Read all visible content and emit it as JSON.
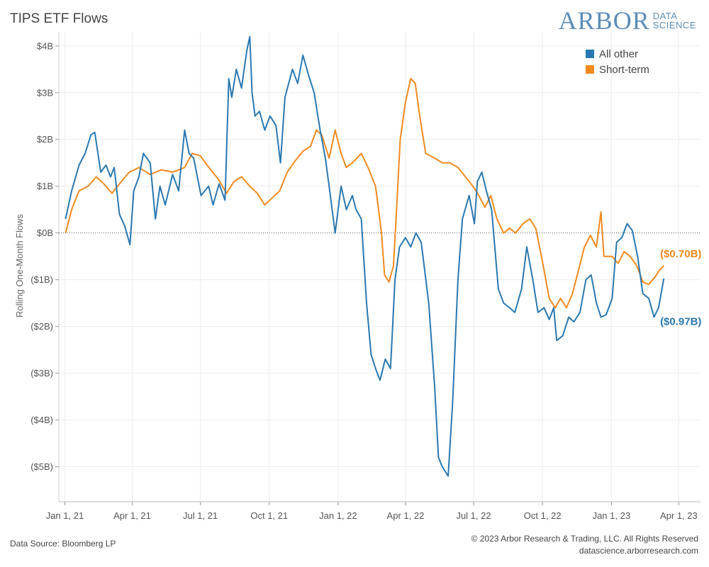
{
  "header": {
    "title": "TIPS ETF Flows",
    "logo_main": "ARBOR",
    "logo_sub_1": "DATA",
    "logo_sub_2": "SCIENCE"
  },
  "footer": {
    "source": "Data Source: Bloomberg LP",
    "copyright": "© 2023 Arbor Research & Trading, LLC. All Rights Reserved",
    "url": "datascience.arborresearch.com"
  },
  "chart_data": {
    "type": "line",
    "title": "TIPS ETF Flows",
    "ylabel": "Rolling One-Month Flows",
    "xlabel": "",
    "ylim": [
      -5.75,
      4.3
    ],
    "yunit": "billions USD",
    "y_ticks": [
      4,
      3,
      2,
      1,
      0,
      -1,
      -2,
      -3,
      -4,
      -5
    ],
    "y_tick_labels": [
      "$4B",
      "$3B",
      "$2B",
      "$1B",
      "$0B",
      "($1B)",
      "($2B)",
      "($3B)",
      "($4B)",
      "($5B)"
    ],
    "x_range": [
      "2020-12-24",
      "2023-04-30"
    ],
    "x_ticks": [
      "2021-01-01",
      "2021-04-01",
      "2021-07-01",
      "2021-10-01",
      "2022-01-01",
      "2022-04-01",
      "2022-07-01",
      "2022-10-01",
      "2023-01-01",
      "2023-04-01"
    ],
    "x_tick_labels": [
      "Jan 1, 21",
      "Apr 1, 21",
      "Jul 1, 21",
      "Oct 1, 21",
      "Jan 1, 22",
      "Apr 1, 22",
      "Jul 1, 22",
      "Oct 1, 22",
      "Jan 1, 23",
      "Apr 1, 23"
    ],
    "zero_line": "dotted",
    "legend_position": "top-right",
    "colors": {
      "all_other": "#2a78b0",
      "short_term": "#f18a20"
    },
    "series": [
      {
        "name": "All other",
        "color": "#2a78b0",
        "end_label": "($0.97B)",
        "points": [
          [
            "2021-01-02",
            0.3
          ],
          [
            "2021-01-10",
            0.9
          ],
          [
            "2021-01-20",
            1.45
          ],
          [
            "2021-01-28",
            1.7
          ],
          [
            "2021-02-05",
            2.1
          ],
          [
            "2021-02-10",
            2.15
          ],
          [
            "2021-02-18",
            1.3
          ],
          [
            "2021-02-25",
            1.45
          ],
          [
            "2021-03-03",
            1.2
          ],
          [
            "2021-03-08",
            1.4
          ],
          [
            "2021-03-15",
            0.4
          ],
          [
            "2021-03-22",
            0.15
          ],
          [
            "2021-03-29",
            -0.25
          ],
          [
            "2021-04-03",
            0.9
          ],
          [
            "2021-04-10",
            1.2
          ],
          [
            "2021-04-16",
            1.7
          ],
          [
            "2021-04-25",
            1.5
          ],
          [
            "2021-05-02",
            0.3
          ],
          [
            "2021-05-08",
            1.0
          ],
          [
            "2021-05-15",
            0.6
          ],
          [
            "2021-05-25",
            1.25
          ],
          [
            "2021-06-02",
            0.9
          ],
          [
            "2021-06-10",
            2.2
          ],
          [
            "2021-06-16",
            1.7
          ],
          [
            "2021-06-22",
            1.6
          ],
          [
            "2021-07-02",
            0.8
          ],
          [
            "2021-07-12",
            1.0
          ],
          [
            "2021-07-18",
            0.6
          ],
          [
            "2021-07-26",
            1.05
          ],
          [
            "2021-08-03",
            0.7
          ],
          [
            "2021-08-08",
            3.3
          ],
          [
            "2021-08-12",
            2.9
          ],
          [
            "2021-08-18",
            3.5
          ],
          [
            "2021-08-25",
            3.1
          ],
          [
            "2021-09-01",
            3.9
          ],
          [
            "2021-09-05",
            4.2
          ],
          [
            "2021-09-08",
            3.0
          ],
          [
            "2021-09-12",
            2.5
          ],
          [
            "2021-09-18",
            2.6
          ],
          [
            "2021-09-25",
            2.2
          ],
          [
            "2021-10-02",
            2.5
          ],
          [
            "2021-10-10",
            2.3
          ],
          [
            "2021-10-16",
            1.5
          ],
          [
            "2021-10-22",
            2.9
          ],
          [
            "2021-11-01",
            3.5
          ],
          [
            "2021-11-08",
            3.2
          ],
          [
            "2021-11-15",
            3.8
          ],
          [
            "2021-11-22",
            3.4
          ],
          [
            "2021-11-30",
            3.0
          ],
          [
            "2021-12-08",
            2.2
          ],
          [
            "2021-12-15",
            1.6
          ],
          [
            "2021-12-20",
            1.0
          ],
          [
            "2021-12-28",
            0.0
          ],
          [
            "2022-01-05",
            1.0
          ],
          [
            "2022-01-12",
            0.5
          ],
          [
            "2022-01-20",
            0.8
          ],
          [
            "2022-01-25",
            0.5
          ],
          [
            "2022-02-01",
            0.3
          ],
          [
            "2022-02-08",
            -1.5
          ],
          [
            "2022-02-14",
            -2.6
          ],
          [
            "2022-02-20",
            -2.9
          ],
          [
            "2022-02-26",
            -3.15
          ],
          [
            "2022-03-05",
            -2.7
          ],
          [
            "2022-03-12",
            -2.9
          ],
          [
            "2022-03-18",
            -1.0
          ],
          [
            "2022-03-24",
            -0.3
          ],
          [
            "2022-04-01",
            -0.1
          ],
          [
            "2022-04-08",
            -0.3
          ],
          [
            "2022-04-15",
            0.0
          ],
          [
            "2022-04-22",
            -0.2
          ],
          [
            "2022-05-02",
            -1.5
          ],
          [
            "2022-05-10",
            -3.3
          ],
          [
            "2022-05-15",
            -4.8
          ],
          [
            "2022-05-20",
            -5.0
          ],
          [
            "2022-05-28",
            -5.2
          ],
          [
            "2022-06-03",
            -3.6
          ],
          [
            "2022-06-10",
            -1.0
          ],
          [
            "2022-06-16",
            0.3
          ],
          [
            "2022-06-25",
            0.8
          ],
          [
            "2022-07-02",
            0.2
          ],
          [
            "2022-07-06",
            1.1
          ],
          [
            "2022-07-12",
            1.3
          ],
          [
            "2022-07-18",
            0.9
          ],
          [
            "2022-07-25",
            0.5
          ],
          [
            "2022-08-03",
            -1.2
          ],
          [
            "2022-08-10",
            -1.5
          ],
          [
            "2022-08-18",
            -1.6
          ],
          [
            "2022-08-25",
            -1.7
          ],
          [
            "2022-09-03",
            -1.2
          ],
          [
            "2022-09-10",
            -0.3
          ],
          [
            "2022-09-18",
            -1.0
          ],
          [
            "2022-09-25",
            -1.7
          ],
          [
            "2022-10-03",
            -1.6
          ],
          [
            "2022-10-10",
            -1.85
          ],
          [
            "2022-10-16",
            -1.6
          ],
          [
            "2022-10-20",
            -2.3
          ],
          [
            "2022-10-28",
            -2.2
          ],
          [
            "2022-11-05",
            -1.8
          ],
          [
            "2022-11-12",
            -1.9
          ],
          [
            "2022-11-20",
            -1.7
          ],
          [
            "2022-11-28",
            -1.0
          ],
          [
            "2022-12-05",
            -0.9
          ],
          [
            "2022-12-12",
            -1.5
          ],
          [
            "2022-12-18",
            -1.8
          ],
          [
            "2022-12-25",
            -1.75
          ],
          [
            "2023-01-02",
            -1.4
          ],
          [
            "2023-01-08",
            -0.2
          ],
          [
            "2023-01-15",
            -0.1
          ],
          [
            "2023-01-22",
            0.2
          ],
          [
            "2023-01-29",
            0.05
          ],
          [
            "2023-02-05",
            -0.5
          ],
          [
            "2023-02-12",
            -1.3
          ],
          [
            "2023-02-20",
            -1.4
          ],
          [
            "2023-02-27",
            -1.8
          ],
          [
            "2023-03-05",
            -1.6
          ],
          [
            "2023-03-12",
            -0.97
          ]
        ]
      },
      {
        "name": "Short-term",
        "color": "#f18a20",
        "end_label": "($0.70B)",
        "points": [
          [
            "2021-01-02",
            0.0
          ],
          [
            "2021-01-10",
            0.5
          ],
          [
            "2021-01-20",
            0.9
          ],
          [
            "2021-02-01",
            1.0
          ],
          [
            "2021-02-12",
            1.2
          ],
          [
            "2021-02-22",
            1.05
          ],
          [
            "2021-03-05",
            0.85
          ],
          [
            "2021-03-15",
            1.05
          ],
          [
            "2021-03-28",
            1.3
          ],
          [
            "2021-04-10",
            1.4
          ],
          [
            "2021-04-25",
            1.25
          ],
          [
            "2021-05-10",
            1.35
          ],
          [
            "2021-05-25",
            1.3
          ],
          [
            "2021-06-10",
            1.4
          ],
          [
            "2021-06-20",
            1.7
          ],
          [
            "2021-07-01",
            1.65
          ],
          [
            "2021-07-10",
            1.45
          ],
          [
            "2021-07-25",
            1.15
          ],
          [
            "2021-08-05",
            0.85
          ],
          [
            "2021-08-15",
            1.1
          ],
          [
            "2021-08-25",
            1.2
          ],
          [
            "2021-09-05",
            1.0
          ],
          [
            "2021-09-15",
            0.85
          ],
          [
            "2021-09-25",
            0.6
          ],
          [
            "2021-10-05",
            0.75
          ],
          [
            "2021-10-15",
            0.9
          ],
          [
            "2021-10-25",
            1.3
          ],
          [
            "2021-11-05",
            1.55
          ],
          [
            "2021-11-15",
            1.75
          ],
          [
            "2021-11-25",
            1.85
          ],
          [
            "2021-12-03",
            2.2
          ],
          [
            "2021-12-10",
            2.1
          ],
          [
            "2021-12-20",
            1.6
          ],
          [
            "2021-12-28",
            2.2
          ],
          [
            "2022-01-05",
            1.7
          ],
          [
            "2022-01-12",
            1.4
          ],
          [
            "2022-01-20",
            1.5
          ],
          [
            "2022-02-01",
            1.7
          ],
          [
            "2022-02-10",
            1.4
          ],
          [
            "2022-02-20",
            1.0
          ],
          [
            "2022-02-28",
            0.0
          ],
          [
            "2022-03-04",
            -0.9
          ],
          [
            "2022-03-10",
            -1.05
          ],
          [
            "2022-03-16",
            -0.7
          ],
          [
            "2022-03-20",
            0.5
          ],
          [
            "2022-03-25",
            2.0
          ],
          [
            "2022-04-01",
            2.8
          ],
          [
            "2022-04-08",
            3.3
          ],
          [
            "2022-04-14",
            3.2
          ],
          [
            "2022-04-20",
            2.5
          ],
          [
            "2022-04-28",
            1.7
          ],
          [
            "2022-05-10",
            1.6
          ],
          [
            "2022-05-20",
            1.5
          ],
          [
            "2022-05-30",
            1.5
          ],
          [
            "2022-06-10",
            1.4
          ],
          [
            "2022-06-20",
            1.2
          ],
          [
            "2022-06-30",
            1.0
          ],
          [
            "2022-07-08",
            0.8
          ],
          [
            "2022-07-16",
            0.55
          ],
          [
            "2022-07-24",
            0.8
          ],
          [
            "2022-08-01",
            0.3
          ],
          [
            "2022-08-10",
            0.0
          ],
          [
            "2022-08-18",
            0.1
          ],
          [
            "2022-08-26",
            0.0
          ],
          [
            "2022-09-05",
            0.2
          ],
          [
            "2022-09-14",
            0.3
          ],
          [
            "2022-09-22",
            0.1
          ],
          [
            "2022-10-02",
            -0.7
          ],
          [
            "2022-10-10",
            -1.4
          ],
          [
            "2022-10-18",
            -1.6
          ],
          [
            "2022-10-25",
            -1.4
          ],
          [
            "2022-11-02",
            -1.6
          ],
          [
            "2022-11-10",
            -1.3
          ],
          [
            "2022-11-18",
            -0.8
          ],
          [
            "2022-11-26",
            -0.3
          ],
          [
            "2022-12-04",
            -0.05
          ],
          [
            "2022-12-12",
            -0.3
          ],
          [
            "2022-12-18",
            0.45
          ],
          [
            "2022-12-22",
            -0.5
          ],
          [
            "2023-01-02",
            -0.5
          ],
          [
            "2023-01-10",
            -0.65
          ],
          [
            "2023-01-18",
            -0.4
          ],
          [
            "2023-01-26",
            -0.5
          ],
          [
            "2023-02-04",
            -0.7
          ],
          [
            "2023-02-12",
            -1.05
          ],
          [
            "2023-02-20",
            -1.1
          ],
          [
            "2023-02-28",
            -0.95
          ],
          [
            "2023-03-06",
            -0.8
          ],
          [
            "2023-03-12",
            -0.7
          ]
        ]
      }
    ]
  }
}
